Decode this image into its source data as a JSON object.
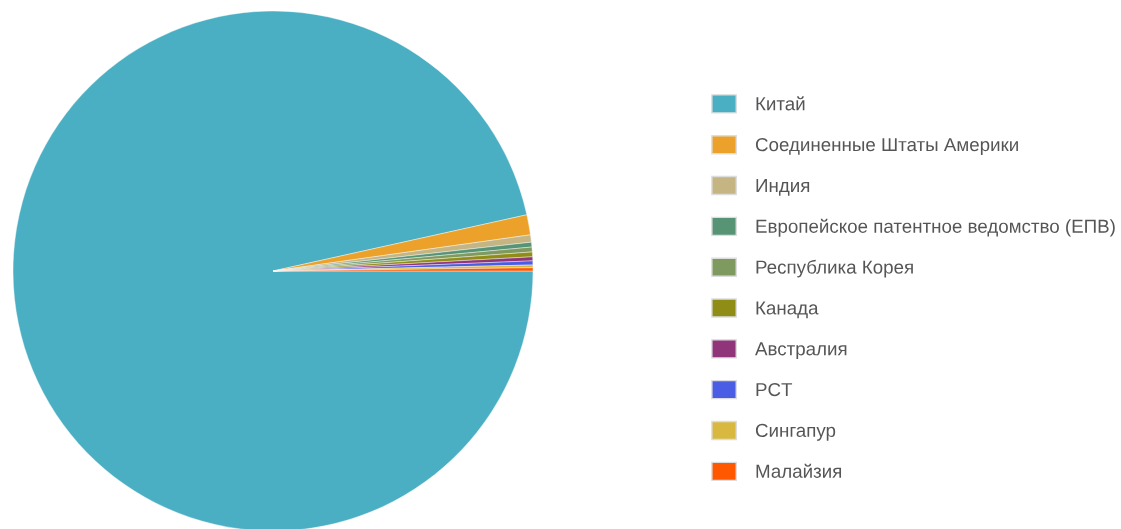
{
  "chart_data": {
    "type": "pie",
    "categories": [
      "Китай",
      "Соединенные Штаты Америки",
      "Индия",
      "Европейское патентное ведомство (ЕПВ)",
      "Республика Корея",
      "Канада",
      "Австралия",
      "PCT",
      "Сингапур",
      "Малайзия"
    ],
    "values": [
      96.53,
      1.25,
      0.45,
      0.3,
      0.3,
      0.3,
      0.25,
      0.25,
      0.17,
      0.2
    ],
    "colors": [
      "#4bafc4",
      "#eca22a",
      "#c5b583",
      "#579475",
      "#7f9a5e",
      "#908d17",
      "#90357a",
      "#4b5de4",
      "#d8b83f",
      "#ff5800"
    ],
    "legend": "right"
  }
}
